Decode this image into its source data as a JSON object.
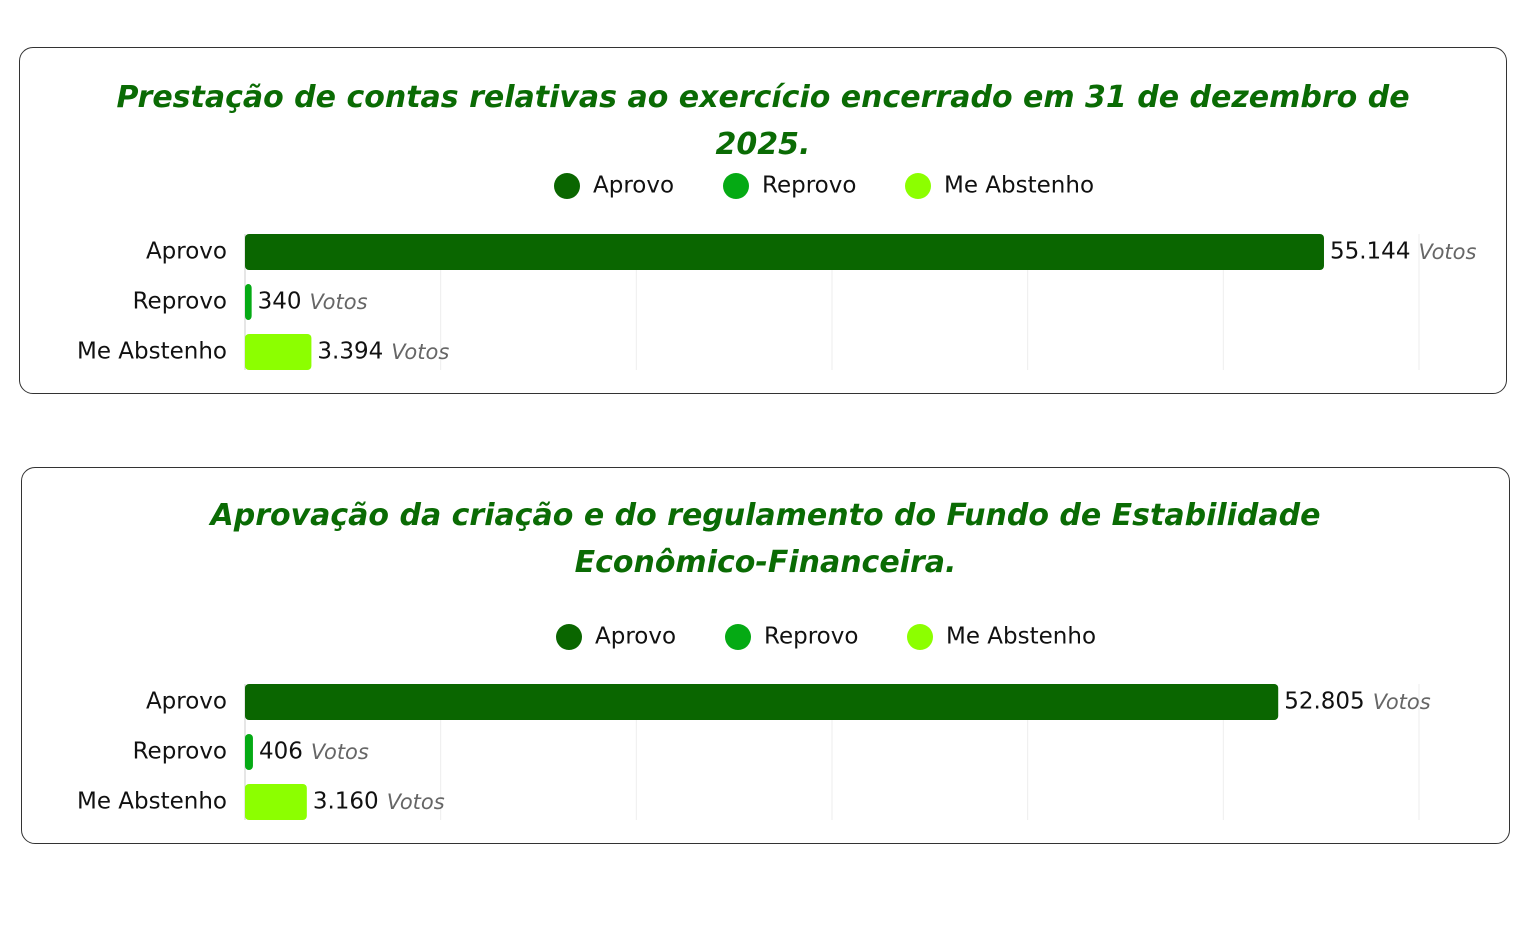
{
  "chart_data": [
    {
      "type": "bar",
      "orientation": "horizontal",
      "title": "Prestação de contas relativas ao exercício encerrado em 31 de dezembro de 2025.",
      "categories": [
        "Aprovo",
        "Reprovo",
        "Me Abstenho"
      ],
      "values": [
        55144,
        340,
        3394
      ],
      "value_labels": [
        "55.144",
        "340",
        "3.394"
      ],
      "unit": "Votos",
      "colors": [
        "#0a6600",
        "#05aa14",
        "#8cff00"
      ],
      "xlim": [
        0,
        60000
      ],
      "xticks": [
        0,
        10000,
        20000,
        30000,
        40000,
        50000,
        60000
      ],
      "grid": true
    },
    {
      "type": "bar",
      "orientation": "horizontal",
      "title": "Aprovação da criação e do regulamento do Fundo de Estabilidade Econômico-Financeira.",
      "categories": [
        "Aprovo",
        "Reprovo",
        "Me Abstenho"
      ],
      "values": [
        52805,
        406,
        3160
      ],
      "value_labels": [
        "52.805",
        "406",
        "3.160"
      ],
      "unit": "Votos",
      "colors": [
        "#0a6600",
        "#05aa14",
        "#8cff00"
      ],
      "xlim": [
        0,
        60000
      ],
      "xticks": [
        0,
        10000,
        20000,
        30000,
        40000,
        50000,
        60000
      ],
      "grid": true
    }
  ]
}
